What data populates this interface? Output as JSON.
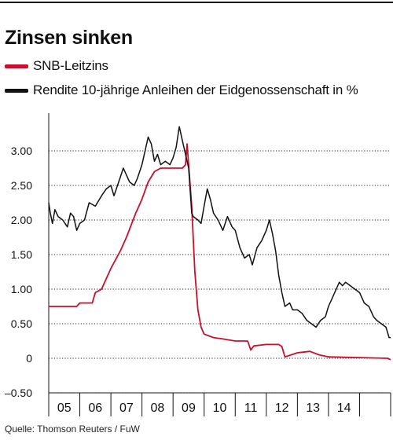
{
  "title": "Zinsen sinken",
  "legend": [
    {
      "label": "SNB-Leitzins",
      "color": "#c8102e"
    },
    {
      "label": "Rendite 10-jährige Anleihen der Eidgenossenschaft in %",
      "color": "#111111"
    }
  ],
  "source": "Quelle: Thomson Reuters / FuW",
  "chart_data": {
    "type": "line",
    "title": "Zinsen sinken",
    "xlabel": "",
    "ylabel": "",
    "xlim": [
      2004.0,
      2015.0
    ],
    "ylim": [
      -0.5,
      3.5
    ],
    "y_ticks": [
      3.0,
      2.5,
      2.0,
      1.5,
      1.0,
      0.5,
      0,
      -0.5
    ],
    "y_tick_labels": [
      "3.00",
      "2.50",
      "2.00",
      "1.50",
      "1.00",
      "0.50",
      "0",
      "–0.50"
    ],
    "x_tick_labels": [
      "05",
      "06",
      "07",
      "08",
      "09",
      "10",
      "11",
      "12",
      "13",
      "14"
    ],
    "grid": "horizontal dotted",
    "legend_position": "top-left",
    "series": [
      {
        "name": "SNB-Leitzins",
        "color": "#c8102e",
        "points": [
          [
            2004.0,
            0.75
          ],
          [
            2004.9,
            0.75
          ],
          [
            2005.0,
            0.8
          ],
          [
            2005.4,
            0.8
          ],
          [
            2005.5,
            0.95
          ],
          [
            2005.7,
            1.0
          ],
          [
            2006.0,
            1.3
          ],
          [
            2006.3,
            1.55
          ],
          [
            2006.5,
            1.75
          ],
          [
            2006.8,
            2.1
          ],
          [
            2007.0,
            2.3
          ],
          [
            2007.2,
            2.55
          ],
          [
            2007.4,
            2.7
          ],
          [
            2007.6,
            2.75
          ],
          [
            2008.0,
            2.75
          ],
          [
            2008.3,
            2.75
          ],
          [
            2008.4,
            2.8
          ],
          [
            2008.45,
            3.1
          ],
          [
            2008.5,
            2.8
          ],
          [
            2008.6,
            2.2
          ],
          [
            2008.7,
            1.25
          ],
          [
            2008.8,
            0.7
          ],
          [
            2008.9,
            0.45
          ],
          [
            2009.0,
            0.35
          ],
          [
            2009.3,
            0.3
          ],
          [
            2009.6,
            0.28
          ],
          [
            2010.0,
            0.25
          ],
          [
            2010.4,
            0.25
          ],
          [
            2010.5,
            0.12
          ],
          [
            2010.6,
            0.18
          ],
          [
            2011.0,
            0.2
          ],
          [
            2011.4,
            0.2
          ],
          [
            2011.5,
            0.17
          ],
          [
            2011.6,
            0.02
          ],
          [
            2011.8,
            0.05
          ],
          [
            2012.0,
            0.08
          ],
          [
            2012.4,
            0.1
          ],
          [
            2012.7,
            0.05
          ],
          [
            2013.0,
            0.02
          ],
          [
            2014.0,
            0.01
          ],
          [
            2014.9,
            0.0
          ],
          [
            2015.0,
            -0.02
          ]
        ]
      },
      {
        "name": "Rendite 10-jährige Anleihen der Eidgenossenschaft in %",
        "color": "#111111",
        "points": [
          [
            2004.0,
            2.25
          ],
          [
            2004.05,
            2.1
          ],
          [
            2004.12,
            1.95
          ],
          [
            2004.2,
            2.15
          ],
          [
            2004.3,
            2.05
          ],
          [
            2004.45,
            2.0
          ],
          [
            2004.6,
            1.9
          ],
          [
            2004.7,
            2.1
          ],
          [
            2004.8,
            2.05
          ],
          [
            2004.9,
            1.85
          ],
          [
            2005.0,
            1.95
          ],
          [
            2005.15,
            2.0
          ],
          [
            2005.3,
            2.25
          ],
          [
            2005.5,
            2.2
          ],
          [
            2005.7,
            2.35
          ],
          [
            2005.85,
            2.45
          ],
          [
            2006.0,
            2.5
          ],
          [
            2006.1,
            2.35
          ],
          [
            2006.25,
            2.55
          ],
          [
            2006.4,
            2.75
          ],
          [
            2006.5,
            2.65
          ],
          [
            2006.6,
            2.55
          ],
          [
            2006.75,
            2.5
          ],
          [
            2006.85,
            2.6
          ],
          [
            2007.0,
            2.8
          ],
          [
            2007.1,
            3.0
          ],
          [
            2007.2,
            3.2
          ],
          [
            2007.3,
            3.1
          ],
          [
            2007.4,
            2.85
          ],
          [
            2007.5,
            2.95
          ],
          [
            2007.6,
            2.8
          ],
          [
            2007.75,
            2.85
          ],
          [
            2007.9,
            2.8
          ],
          [
            2008.0,
            2.9
          ],
          [
            2008.1,
            3.05
          ],
          [
            2008.2,
            3.35
          ],
          [
            2008.3,
            3.15
          ],
          [
            2008.4,
            2.95
          ],
          [
            2008.5,
            2.75
          ],
          [
            2008.6,
            2.1
          ],
          [
            2008.65,
            2.05
          ],
          [
            2008.8,
            2.0
          ],
          [
            2008.9,
            1.95
          ],
          [
            2009.0,
            2.2
          ],
          [
            2009.1,
            2.45
          ],
          [
            2009.2,
            2.3
          ],
          [
            2009.3,
            2.1
          ],
          [
            2009.45,
            2.0
          ],
          [
            2009.6,
            1.85
          ],
          [
            2009.75,
            2.05
          ],
          [
            2009.9,
            1.9
          ],
          [
            2010.0,
            1.85
          ],
          [
            2010.15,
            1.6
          ],
          [
            2010.3,
            1.45
          ],
          [
            2010.45,
            1.5
          ],
          [
            2010.55,
            1.35
          ],
          [
            2010.7,
            1.6
          ],
          [
            2010.85,
            1.7
          ],
          [
            2011.0,
            1.85
          ],
          [
            2011.1,
            2.0
          ],
          [
            2011.2,
            1.8
          ],
          [
            2011.3,
            1.55
          ],
          [
            2011.4,
            1.2
          ],
          [
            2011.5,
            0.95
          ],
          [
            2011.6,
            0.75
          ],
          [
            2011.75,
            0.8
          ],
          [
            2011.85,
            0.7
          ],
          [
            2012.0,
            0.7
          ],
          [
            2012.15,
            0.65
          ],
          [
            2012.3,
            0.55
          ],
          [
            2012.45,
            0.5
          ],
          [
            2012.6,
            0.45
          ],
          [
            2012.75,
            0.55
          ],
          [
            2012.9,
            0.6
          ],
          [
            2013.0,
            0.75
          ],
          [
            2013.1,
            0.85
          ],
          [
            2013.25,
            1.0
          ],
          [
            2013.35,
            1.1
          ],
          [
            2013.45,
            1.05
          ],
          [
            2013.55,
            1.1
          ],
          [
            2013.7,
            1.05
          ],
          [
            2013.85,
            1.0
          ],
          [
            2014.0,
            0.95
          ],
          [
            2014.15,
            0.8
          ],
          [
            2014.3,
            0.75
          ],
          [
            2014.45,
            0.6
          ],
          [
            2014.55,
            0.55
          ],
          [
            2014.7,
            0.5
          ],
          [
            2014.85,
            0.45
          ],
          [
            2014.95,
            0.3
          ],
          [
            2015.0,
            0.3
          ]
        ]
      }
    ]
  }
}
